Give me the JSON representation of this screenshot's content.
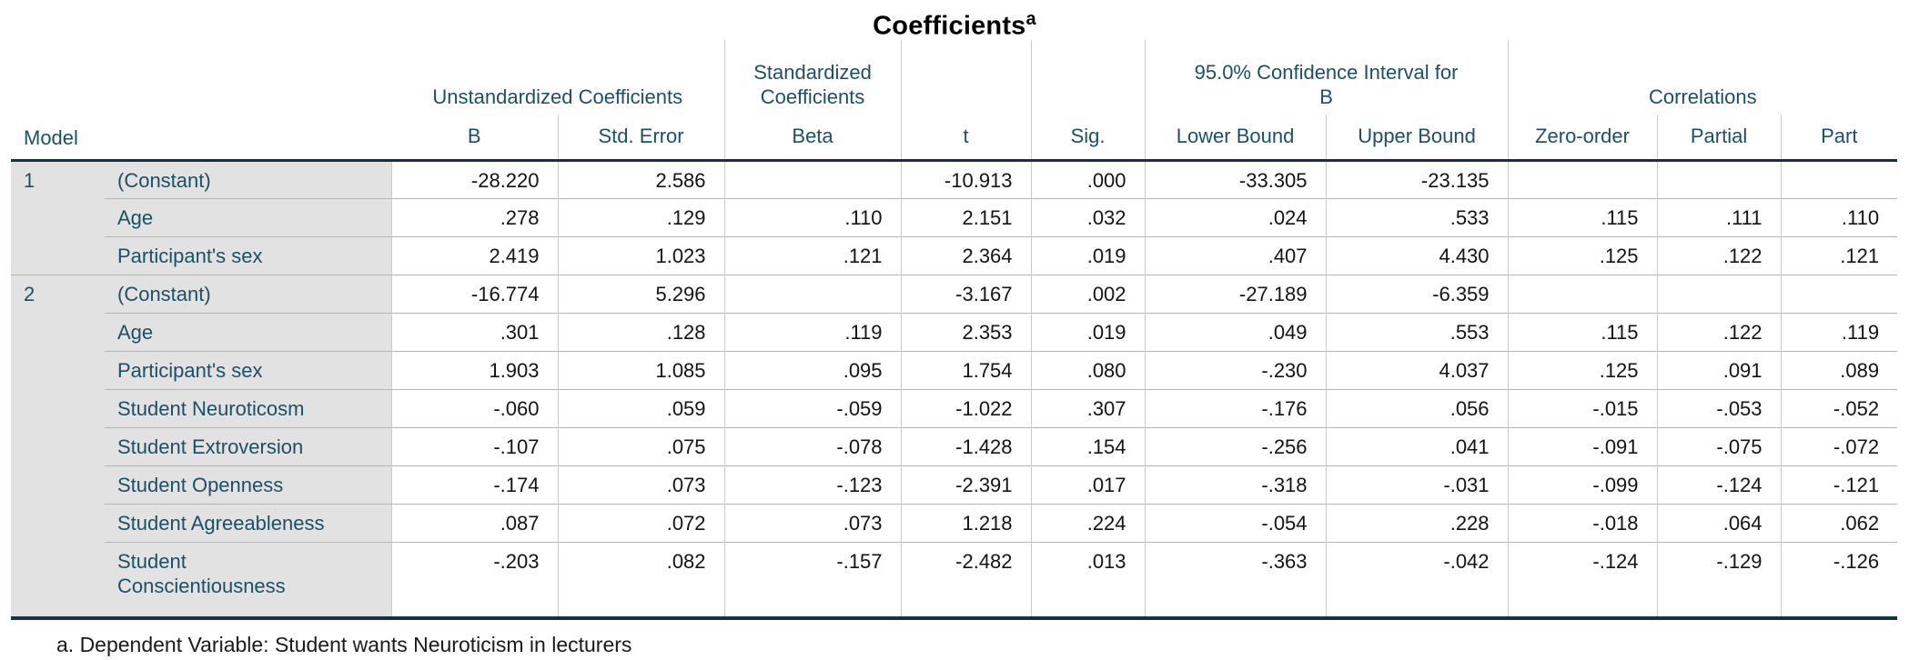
{
  "chart_data": {
    "type": "table",
    "title": "Coefficients",
    "title_superscript": "a",
    "model_header": "Model",
    "groups": {
      "unstandardized": "Unstandardized Coefficients",
      "standardized": "Standardized Coefficients",
      "ci": "95.0% Confidence Interval for\nB",
      "correlations": "Correlations"
    },
    "columns": [
      "B",
      "Std. Error",
      "Beta",
      "t",
      "Sig.",
      "Lower Bound",
      "Upper Bound",
      "Zero-order",
      "Partial",
      "Part"
    ],
    "models": [
      {
        "model": "1",
        "rows": [
          {
            "label": "(Constant)",
            "values": [
              "-28.220",
              "2.586",
              "",
              "-10.913",
              ".000",
              "-33.305",
              "-23.135",
              "",
              "",
              ""
            ]
          },
          {
            "label": "Age",
            "values": [
              ".278",
              ".129",
              ".110",
              "2.151",
              ".032",
              ".024",
              ".533",
              ".115",
              ".111",
              ".110"
            ]
          },
          {
            "label": "Participant's sex",
            "values": [
              "2.419",
              "1.023",
              ".121",
              "2.364",
              ".019",
              ".407",
              "4.430",
              ".125",
              ".122",
              ".121"
            ]
          }
        ]
      },
      {
        "model": "2",
        "rows": [
          {
            "label": "(Constant)",
            "values": [
              "-16.774",
              "5.296",
              "",
              "-3.167",
              ".002",
              "-27.189",
              "-6.359",
              "",
              "",
              ""
            ]
          },
          {
            "label": "Age",
            "values": [
              ".301",
              ".128",
              ".119",
              "2.353",
              ".019",
              ".049",
              ".553",
              ".115",
              ".122",
              ".119"
            ]
          },
          {
            "label": "Participant's sex",
            "values": [
              "1.903",
              "1.085",
              ".095",
              "1.754",
              ".080",
              "-.230",
              "4.037",
              ".125",
              ".091",
              ".089"
            ]
          },
          {
            "label": "Student Neuroticosm",
            "values": [
              "-.060",
              ".059",
              "-.059",
              "-1.022",
              ".307",
              "-.176",
              ".056",
              "-.015",
              "-.053",
              "-.052"
            ]
          },
          {
            "label": "Student Extroversion",
            "values": [
              "-.107",
              ".075",
              "-.078",
              "-1.428",
              ".154",
              "-.256",
              ".041",
              "-.091",
              "-.075",
              "-.072"
            ]
          },
          {
            "label": "Student Openness",
            "values": [
              "-.174",
              ".073",
              "-.123",
              "-2.391",
              ".017",
              "-.318",
              "-.031",
              "-.099",
              "-.124",
              "-.121"
            ]
          },
          {
            "label": "Student Agreeableness",
            "values": [
              ".087",
              ".072",
              ".073",
              "1.218",
              ".224",
              "-.054",
              ".228",
              "-.018",
              ".064",
              ".062"
            ]
          },
          {
            "label": "Student\nConscientiousness",
            "values": [
              "-.203",
              ".082",
              "-.157",
              "-2.482",
              ".013",
              "-.363",
              "-.042",
              "-.124",
              "-.129",
              "-.126"
            ]
          }
        ]
      }
    ],
    "footnote": "a. Dependent Variable: Student wants Neuroticism in lecturers"
  },
  "colors": {
    "header_text": "#1d5065",
    "label_background": "#e2e2e2",
    "heavy_rule": "#17313f",
    "vertical_grid_line": "#cbcbcb",
    "row_separator_line": "#b5b5b5",
    "value_text": "#141414",
    "title_text": "#000000"
  }
}
